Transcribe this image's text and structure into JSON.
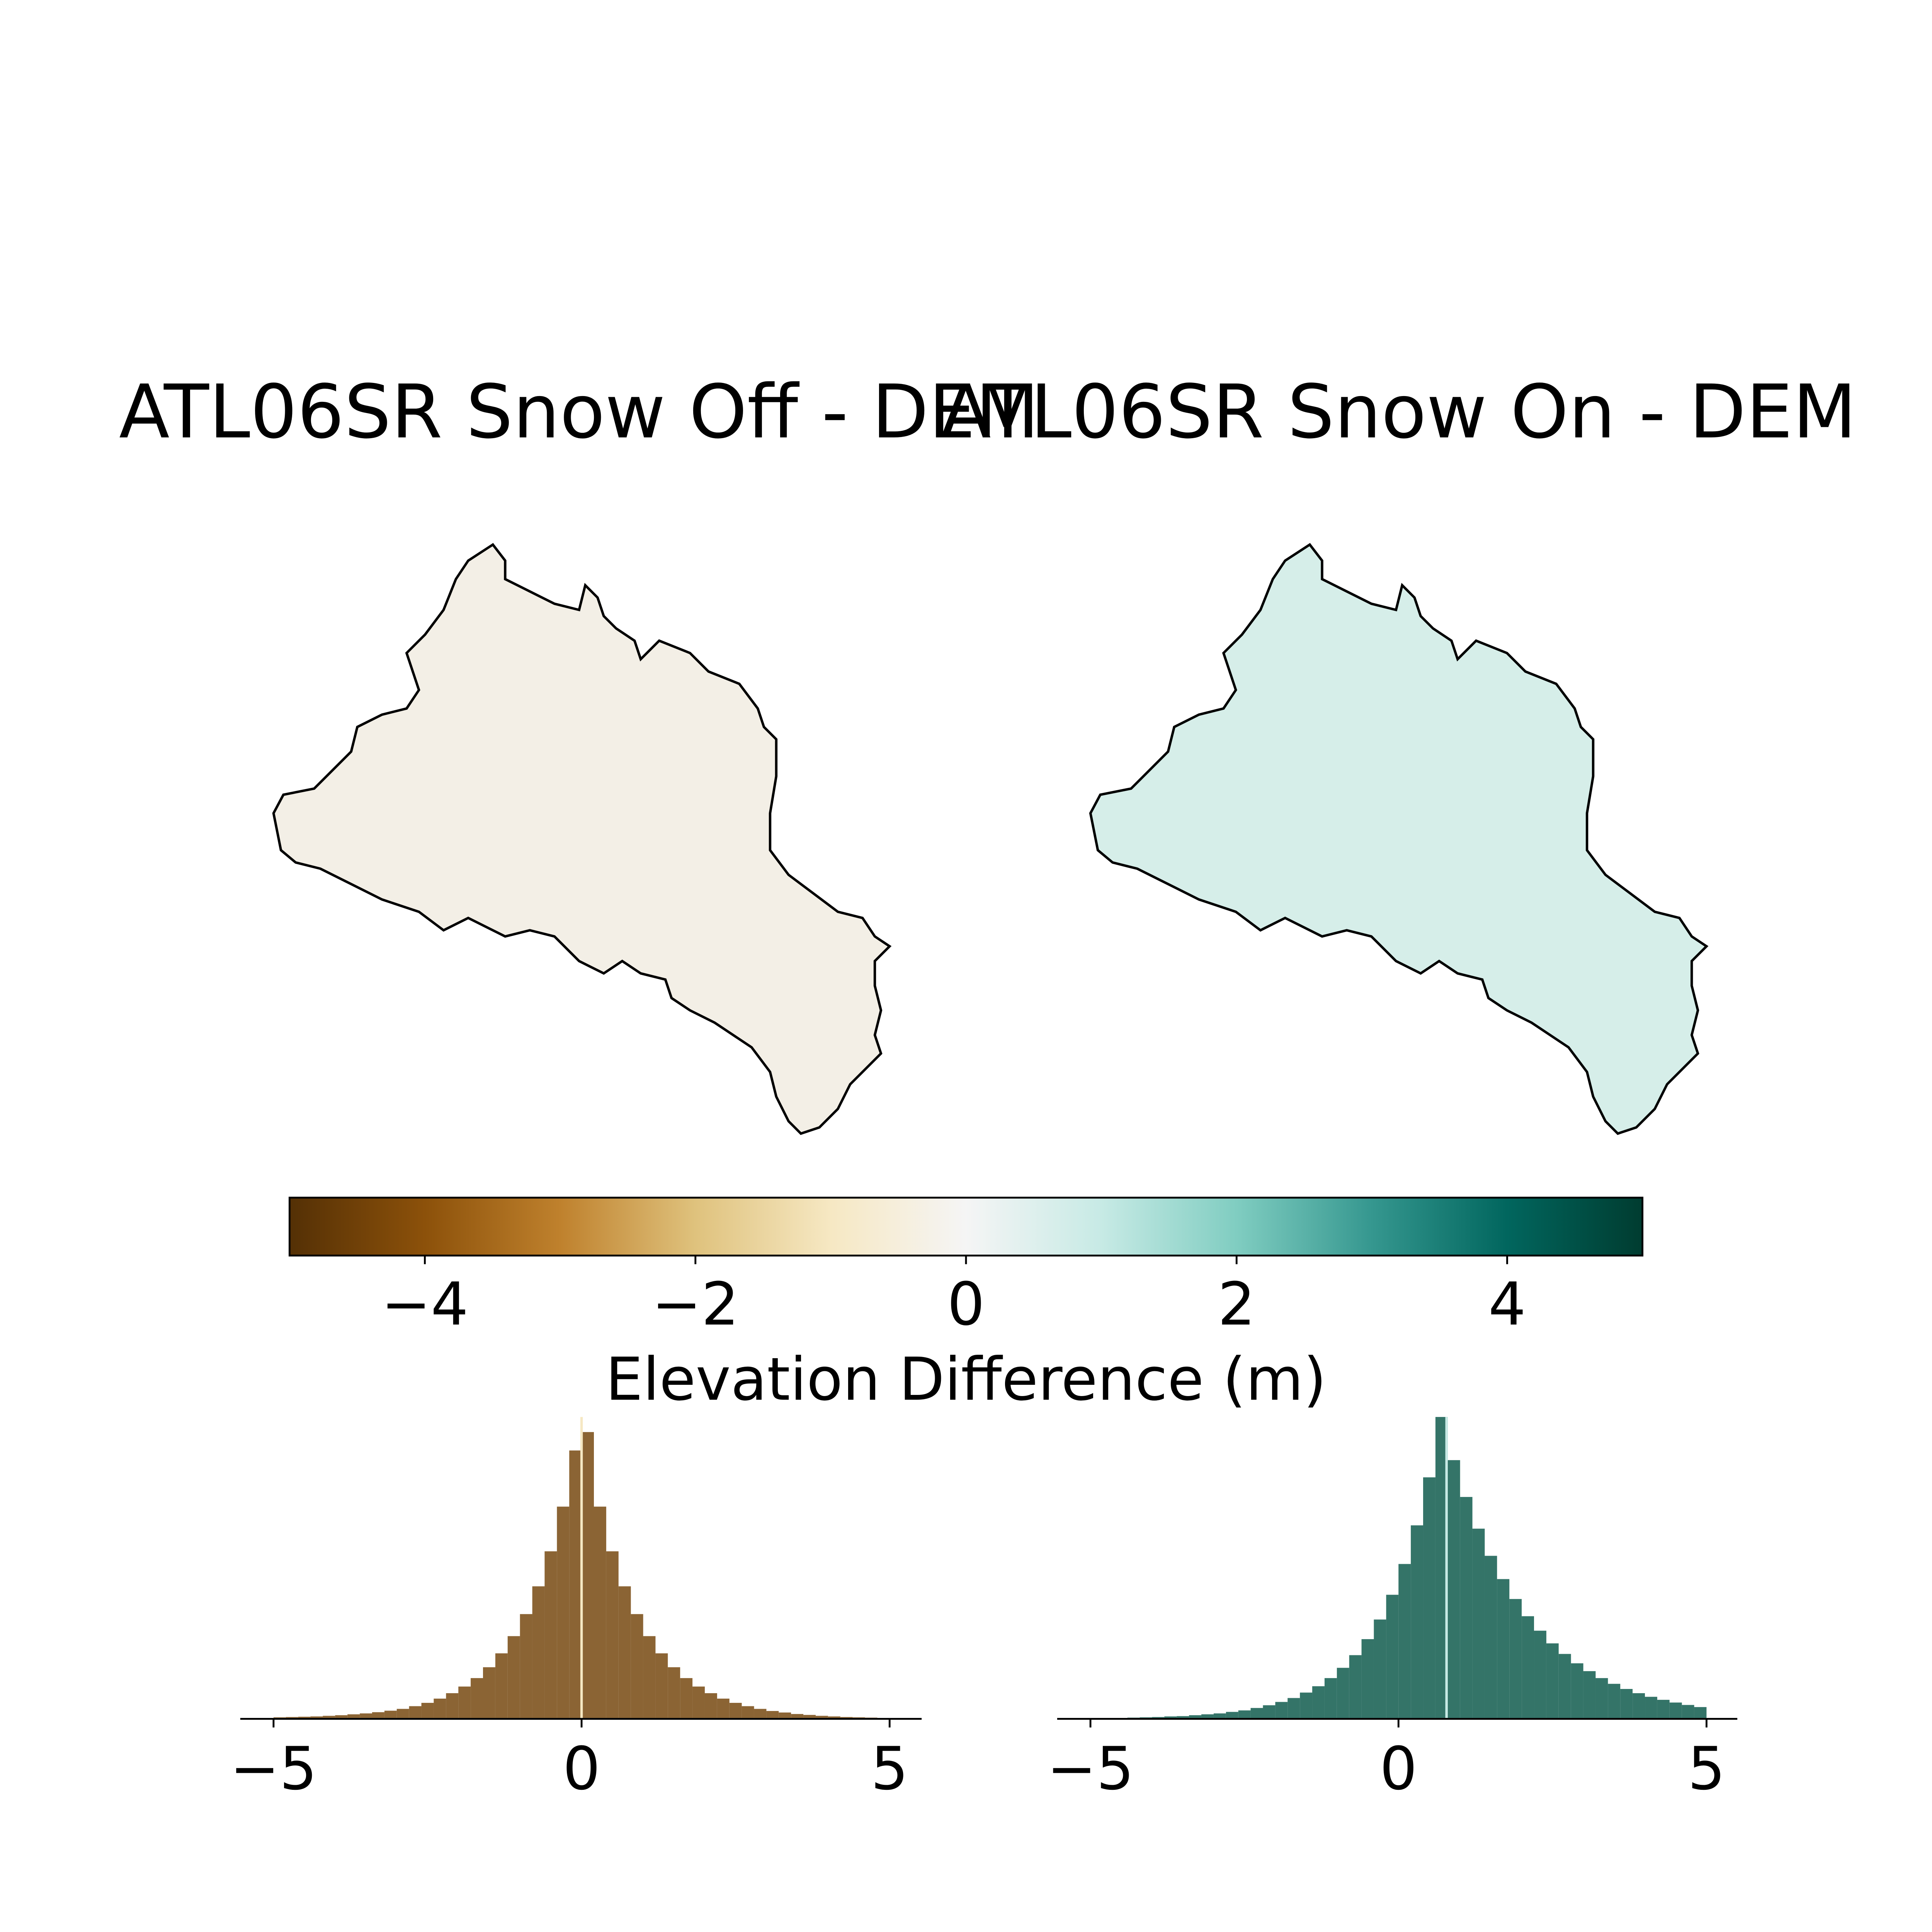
{
  "chart_data": [
    {
      "type": "map",
      "title": "ATL06SR Snow Off - DEM",
      "color": "#f3efe6"
    },
    {
      "type": "map",
      "title": "ATL06SR Snow On - DEM",
      "color": "#d6eee9"
    },
    {
      "type": "colorbar",
      "label": "Elevation Difference (m)",
      "colors": [
        "#543005",
        "#8c510a",
        "#bf812d",
        "#dfc27d",
        "#f6e8c3",
        "#f5f5f5",
        "#c7eae5",
        "#80cdc1",
        "#35978f",
        "#01665e",
        "#003c30"
      ],
      "xlim": [
        -5,
        5
      ],
      "xticks": [
        {
          "value": -4,
          "label": "−4"
        },
        {
          "value": -2,
          "label": "−2"
        },
        0,
        2,
        4
      ]
    },
    {
      "type": "histogram",
      "color": "#8b6434",
      "xlim": [
        -5.54,
        5.52
      ],
      "ylim": [
        0,
        100
      ],
      "vline": 0.0,
      "vline_color": "#f6e8c3",
      "xticks": [
        {
          "value": -5,
          "label": "−5"
        },
        0,
        5
      ],
      "bins": [
        -5,
        -4.8,
        -4.6,
        -4.4,
        -4.2,
        -4,
        -3.8,
        -3.6,
        -3.4,
        -3.2,
        -3,
        -2.8,
        -2.6,
        -2.4,
        -2.2,
        -2,
        -1.8,
        -1.6,
        -1.4,
        -1.2,
        -1,
        -0.8,
        -0.6,
        -0.4,
        -0.2,
        0,
        0.2,
        0.4,
        0.6,
        0.8,
        1,
        1.2,
        1.4,
        1.6,
        1.8,
        2,
        2.2,
        2.4,
        2.6,
        2.8,
        3,
        3.2,
        3.4,
        3.6,
        3.8,
        4,
        4.2,
        4.4,
        4.6,
        4.8,
        5
      ],
      "values": [
        0.5,
        0.6,
        0.7,
        0.8,
        1,
        1.2,
        1.5,
        1.8,
        2.2,
        2.7,
        3.3,
        4.2,
        5.3,
        6.7,
        8.5,
        10.7,
        13.5,
        17.1,
        21.7,
        27.4,
        34.7,
        43.9,
        55.5,
        70.3,
        88.9,
        95,
        70.3,
        55.5,
        43.9,
        34.7,
        27.4,
        21.7,
        17.1,
        13.5,
        10.7,
        8.5,
        6.7,
        5.3,
        4.2,
        3.3,
        2.6,
        2.1,
        1.6,
        1.3,
        1,
        0.8,
        0.6,
        0.5,
        0.4,
        0.3
      ]
    },
    {
      "type": "histogram",
      "color": "#347468",
      "xlim": [
        -5.54,
        5.5
      ],
      "ylim": [
        0,
        100
      ],
      "vline": 0.78,
      "vline_color": "#c7eae5",
      "xticks": [
        {
          "value": -5,
          "label": "−5"
        },
        0,
        5
      ],
      "bins": [
        -5,
        -4.8,
        -4.6,
        -4.4,
        -4.2,
        -4,
        -3.8,
        -3.6,
        -3.4,
        -3.2,
        -3,
        -2.8,
        -2.6,
        -2.4,
        -2.2,
        -2,
        -1.8,
        -1.6,
        -1.4,
        -1.2,
        -1,
        -0.8,
        -0.6,
        -0.4,
        -0.2,
        0,
        0.2,
        0.4,
        0.6,
        0.8,
        1,
        1.2,
        1.4,
        1.6,
        1.8,
        2,
        2.2,
        2.4,
        2.6,
        2.8,
        3,
        3.2,
        3.4,
        3.6,
        3.8,
        4,
        4.2,
        4.4,
        4.6,
        4.8,
        5
      ],
      "values": [
        0.2,
        0.25,
        0.3,
        0.4,
        0.5,
        0.6,
        0.8,
        0.9,
        1.2,
        1.5,
        1.8,
        2.3,
        2.8,
        3.6,
        4.5,
        5.6,
        6.9,
        8.7,
        10.8,
        13.5,
        16.9,
        21.1,
        26.4,
        32.9,
        41.1,
        51.3,
        64.1,
        80,
        100,
        85.7,
        73.5,
        63,
        54,
        46.3,
        39.7,
        34,
        29.2,
        25,
        21.5,
        18.4,
        15.8,
        13.5,
        11.6,
        9.9,
        8.5,
        7.3,
        6.3,
        5.4,
        4.6,
        3.9
      ]
    }
  ]
}
